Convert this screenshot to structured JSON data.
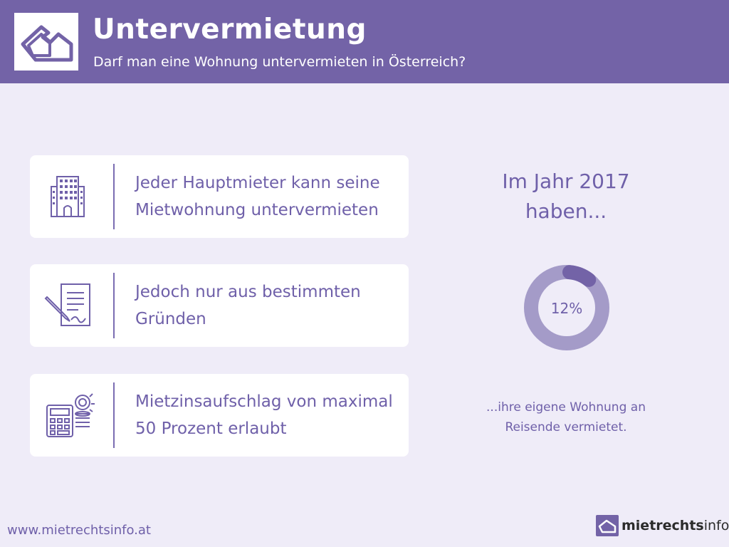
{
  "header": {
    "title": "Untervermietung",
    "subtitle": "Darf man eine Wohnung untervermieten in Österreich?",
    "logo_icon": "house-outline-icon"
  },
  "cards": [
    {
      "icon": "apartment-building-icon",
      "text": "Jeder Hauptmieter kann seine Mietwohnung untervermieten"
    },
    {
      "icon": "contract-signing-icon",
      "text": "Jedoch nur aus bestimmten Gründen"
    },
    {
      "icon": "calculator-coins-icon",
      "text": "Mietzinsaufschlag von maximal 50 Prozent erlaubt"
    }
  ],
  "stat": {
    "heading": "Im Jahr 2017 haben...",
    "percent_label": "12%",
    "percent_value": 12,
    "caption": "...ihre eigene Wohnung an Reisende vermietet."
  },
  "footer": {
    "url": "www.mietrechtsinfo.at",
    "brand_bold": "mietrechts",
    "brand_regular": "info"
  },
  "colors": {
    "primary": "#7363a7",
    "background": "#efecf8",
    "donut_track": "#a49bc8",
    "donut_fill": "#7363a7"
  }
}
